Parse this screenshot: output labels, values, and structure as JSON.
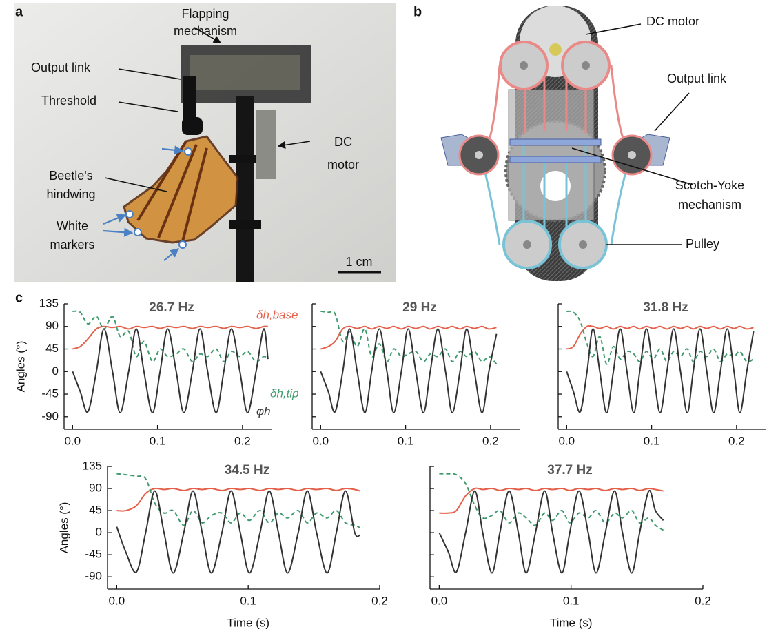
{
  "panel_labels": {
    "a": "a",
    "b": "b",
    "c": "c"
  },
  "photo": {
    "flapping": [
      "Flapping",
      "mechanism"
    ],
    "output_link": "Output link",
    "threshold": "Threshold",
    "hindwing": [
      "Beetle's",
      "hindwing"
    ],
    "markers": [
      "White",
      "markers"
    ],
    "motor": [
      "DC",
      "motor"
    ],
    "scale": "1 cm"
  },
  "diagram": {
    "motor": "DC motor",
    "output_link": "Output link",
    "scotch": [
      "Scotch-Yoke",
      "mechanism"
    ],
    "pulley": "Pulley"
  },
  "chart_data": [
    {
      "type": "line",
      "title": "26.7 Hz",
      "ylabel": "Angles (°)",
      "ytick_labels": true,
      "x": [
        0,
        0.009,
        0.018,
        0.028,
        0.037,
        0.047,
        0.056,
        0.066,
        0.075,
        0.084,
        0.094,
        0.103,
        0.112,
        0.122,
        0.131,
        0.141,
        0.15,
        0.159,
        0.169,
        0.178,
        0.187,
        0.197,
        0.206,
        0.216,
        0.225,
        0.23
      ],
      "series": [
        {
          "name": "δh,base",
          "color": "#e5604a",
          "dash": false,
          "values": [
            45,
            50,
            65,
            85,
            90,
            88,
            90,
            85,
            90,
            88,
            90,
            86,
            90,
            88,
            90,
            86,
            90,
            88,
            90,
            86,
            90,
            88,
            90,
            86,
            90,
            90
          ]
        },
        {
          "name": "δh,tip",
          "color": "#3f9a6c",
          "dash": true,
          "values": [
            120,
            118,
            95,
            110,
            85,
            110,
            70,
            80,
            30,
            60,
            20,
            45,
            30,
            35,
            45,
            20,
            35,
            30,
            45,
            20,
            40,
            30,
            40,
            20,
            30,
            25
          ]
        },
        {
          "name": "φh",
          "color": "#333333",
          "dash": false,
          "values": [
            0,
            -40,
            -80,
            0,
            85,
            0,
            -82,
            0,
            85,
            0,
            -82,
            0,
            85,
            0,
            -82,
            0,
            85,
            0,
            -82,
            0,
            85,
            0,
            -82,
            0,
            85,
            25
          ]
        }
      ],
      "xlim": [
        -0.01,
        0.235
      ],
      "xticks": [
        {
          "value": 0,
          "label": "0.0"
        },
        0.1,
        0.2
      ],
      "ylim": [
        -115,
        135
      ],
      "yticks": [
        135,
        90,
        45,
        0,
        -45,
        -90
      ]
    },
    {
      "type": "line",
      "title": "29 Hz",
      "ytick_labels": false,
      "x": [
        0,
        0.009,
        0.017,
        0.026,
        0.034,
        0.043,
        0.052,
        0.06,
        0.069,
        0.078,
        0.086,
        0.095,
        0.103,
        0.112,
        0.121,
        0.129,
        0.138,
        0.147,
        0.155,
        0.164,
        0.172,
        0.181,
        0.19,
        0.198,
        0.207
      ],
      "series": [
        {
          "color": "#e5604a",
          "dash": false,
          "values": [
            45,
            50,
            60,
            85,
            90,
            86,
            90,
            85,
            90,
            86,
            90,
            85,
            90,
            86,
            90,
            85,
            90,
            86,
            90,
            85,
            90,
            86,
            90,
            85,
            88
          ]
        },
        {
          "color": "#3f9a6c",
          "dash": true,
          "values": [
            120,
            118,
            115,
            60,
            80,
            50,
            85,
            30,
            55,
            20,
            45,
            30,
            35,
            40,
            20,
            35,
            30,
            45,
            20,
            40,
            30,
            40,
            20,
            30,
            15
          ]
        },
        {
          "color": "#333333",
          "dash": false,
          "values": [
            0,
            -40,
            -80,
            0,
            85,
            0,
            -82,
            0,
            85,
            0,
            -82,
            0,
            85,
            0,
            -82,
            0,
            85,
            0,
            -82,
            0,
            85,
            0,
            -82,
            0,
            75
          ]
        }
      ],
      "xlim": [
        -0.01,
        0.235
      ],
      "xticks": [
        {
          "value": 0,
          "label": "0.0"
        },
        0.1,
        0.2
      ],
      "ylim": [
        -115,
        135
      ],
      "yticks": [
        135,
        90,
        45,
        0,
        -45,
        -90
      ]
    },
    {
      "type": "line",
      "title": "31.8 Hz",
      "ytick_labels": false,
      "x": [
        0,
        0.008,
        0.016,
        0.024,
        0.031,
        0.039,
        0.047,
        0.055,
        0.063,
        0.071,
        0.079,
        0.086,
        0.094,
        0.102,
        0.11,
        0.118,
        0.126,
        0.134,
        0.142,
        0.149,
        0.157,
        0.165,
        0.173,
        0.181,
        0.189,
        0.197,
        0.204,
        0.212,
        0.22
      ],
      "series": [
        {
          "color": "#e5604a",
          "dash": false,
          "values": [
            45,
            50,
            75,
            90,
            90,
            86,
            90,
            85,
            90,
            86,
            90,
            85,
            90,
            86,
            90,
            85,
            90,
            86,
            90,
            85,
            90,
            86,
            90,
            85,
            90,
            86,
            90,
            85,
            88
          ]
        },
        {
          "color": "#3f9a6c",
          "dash": true,
          "values": [
            120,
            118,
            100,
            55,
            30,
            70,
            15,
            50,
            25,
            40,
            35,
            20,
            40,
            25,
            45,
            20,
            40,
            30,
            45,
            20,
            40,
            30,
            45,
            20,
            35,
            30,
            40,
            20,
            25
          ]
        },
        {
          "color": "#333333",
          "dash": false,
          "values": [
            0,
            -40,
            -80,
            0,
            85,
            0,
            -82,
            0,
            85,
            0,
            -82,
            0,
            85,
            0,
            -82,
            0,
            85,
            0,
            -82,
            0,
            85,
            0,
            -82,
            0,
            85,
            0,
            -82,
            0,
            80
          ]
        }
      ],
      "xlim": [
        -0.01,
        0.235
      ],
      "xticks": [
        {
          "value": 0,
          "label": "0.0"
        },
        0.1,
        0.2
      ],
      "ylim": [
        -115,
        135
      ],
      "yticks": [
        135,
        90,
        45,
        0,
        -45,
        -90
      ]
    },
    {
      "type": "line",
      "title": "34.5 Hz",
      "ylabel": "Angles (°)",
      "xlabel": "Time (s)",
      "ytick_labels": true,
      "x": [
        0,
        0.007,
        0.015,
        0.022,
        0.029,
        0.036,
        0.043,
        0.051,
        0.058,
        0.065,
        0.072,
        0.08,
        0.087,
        0.094,
        0.101,
        0.109,
        0.116,
        0.123,
        0.13,
        0.138,
        0.145,
        0.152,
        0.16,
        0.167,
        0.174,
        0.181,
        0.185
      ],
      "series": [
        {
          "color": "#e5604a",
          "dash": false,
          "values": [
            45,
            45,
            55,
            80,
            90,
            88,
            90,
            86,
            90,
            88,
            90,
            86,
            90,
            88,
            90,
            86,
            90,
            88,
            90,
            86,
            90,
            88,
            90,
            86,
            90,
            88,
            85
          ]
        },
        {
          "color": "#3f9a6c",
          "dash": true,
          "values": [
            120,
            118,
            115,
            110,
            60,
            40,
            45,
            15,
            45,
            20,
            35,
            40,
            20,
            40,
            25,
            45,
            20,
            40,
            30,
            45,
            20,
            40,
            30,
            45,
            20,
            15,
            10
          ]
        },
        {
          "color": "#333333",
          "dash": false,
          "values": [
            12,
            -40,
            -80,
            0,
            85,
            0,
            -82,
            0,
            85,
            0,
            -82,
            0,
            85,
            0,
            -82,
            0,
            85,
            0,
            -82,
            0,
            85,
            0,
            -82,
            0,
            85,
            0,
            -5
          ]
        }
      ],
      "xlim": [
        -0.007,
        0.2
      ],
      "xticks": [
        {
          "value": 0,
          "label": "0.0"
        },
        0.1,
        0.2
      ],
      "ylim": [
        -115,
        135
      ],
      "yticks": [
        135,
        90,
        45,
        0,
        -45,
        -90
      ]
    },
    {
      "type": "line",
      "title": "37.7 Hz",
      "xlabel": "Time (s)",
      "ytick_labels": false,
      "x": [
        0,
        0.007,
        0.013,
        0.02,
        0.027,
        0.033,
        0.04,
        0.046,
        0.053,
        0.06,
        0.066,
        0.073,
        0.08,
        0.086,
        0.093,
        0.099,
        0.106,
        0.113,
        0.119,
        0.126,
        0.133,
        0.139,
        0.146,
        0.152,
        0.159,
        0.164,
        0.17
      ],
      "series": [
        {
          "color": "#e5604a",
          "dash": false,
          "values": [
            40,
            40,
            45,
            75,
            90,
            88,
            90,
            86,
            90,
            88,
            90,
            86,
            90,
            88,
            90,
            86,
            90,
            88,
            90,
            86,
            90,
            88,
            90,
            86,
            90,
            88,
            85
          ]
        },
        {
          "color": "#3f9a6c",
          "dash": true,
          "values": [
            120,
            120,
            118,
            100,
            55,
            30,
            35,
            45,
            20,
            40,
            30,
            15,
            40,
            25,
            45,
            20,
            40,
            30,
            45,
            20,
            40,
            30,
            45,
            20,
            30,
            15,
            5
          ]
        },
        {
          "color": "#333333",
          "dash": false,
          "values": [
            0,
            -40,
            -80,
            0,
            85,
            0,
            -82,
            0,
            85,
            0,
            -82,
            0,
            85,
            0,
            -82,
            0,
            85,
            0,
            -82,
            0,
            85,
            0,
            -82,
            0,
            85,
            45,
            25
          ]
        }
      ],
      "xlim": [
        -0.007,
        0.2
      ],
      "xticks": [
        {
          "value": 0,
          "label": "0.0"
        },
        0.1,
        0.2
      ],
      "ylim": [
        -115,
        135
      ],
      "yticks": [
        135,
        90,
        45,
        0,
        -45,
        -90
      ]
    }
  ]
}
